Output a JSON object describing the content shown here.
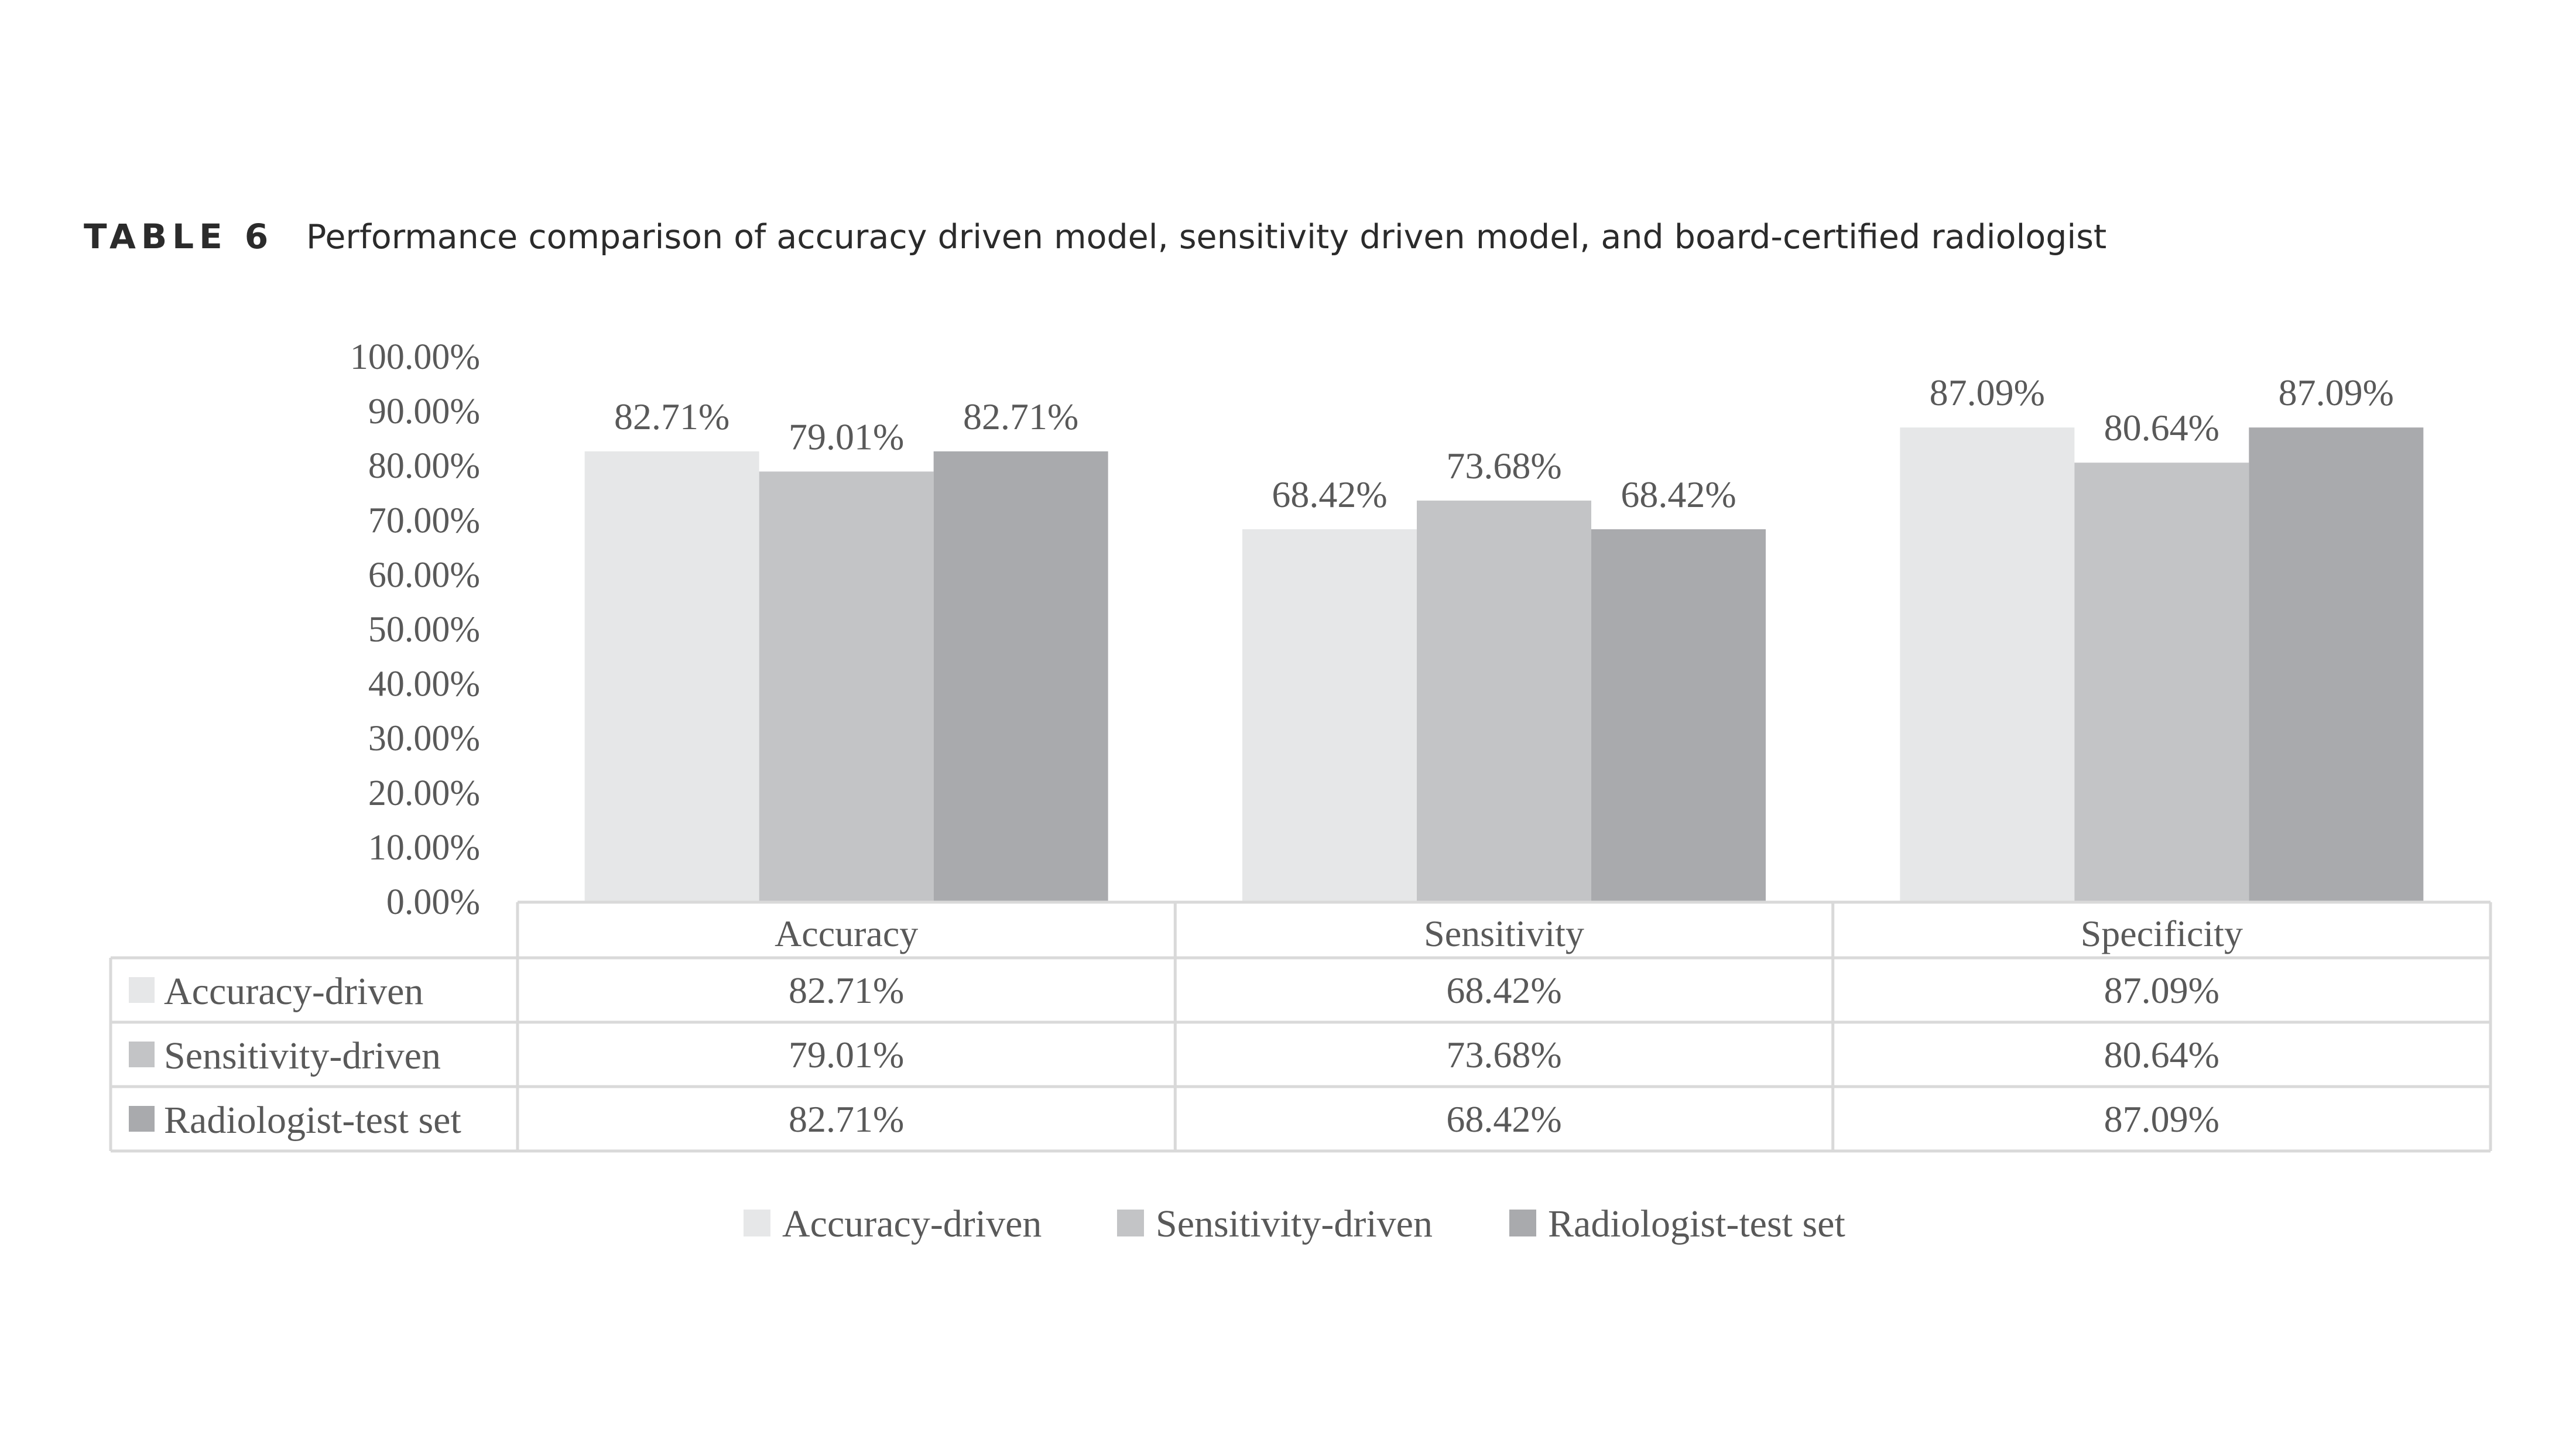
{
  "header": {
    "label": "TABLE 6",
    "caption": "Performance comparison of accuracy driven model, sensitivity driven model, and board-certified radiologist"
  },
  "chart_data": {
    "type": "bar",
    "categories": [
      "Accuracy",
      "Sensitivity",
      "Specificity"
    ],
    "series": [
      {
        "name": "Accuracy-driven",
        "values": [
          82.71,
          68.42,
          87.09
        ],
        "labels": [
          "82.71%",
          "68.42%",
          "87.09%"
        ],
        "color": "#e6e7e8"
      },
      {
        "name": "Sensitivity-driven",
        "values": [
          79.01,
          73.68,
          80.64
        ],
        "labels": [
          "79.01%",
          "73.68%",
          "80.64%"
        ],
        "color": "#c3c4c6"
      },
      {
        "name": "Radiologist-test set",
        "values": [
          82.71,
          68.42,
          87.09
        ],
        "labels": [
          "82.71%",
          "68.42%",
          "87.09%"
        ],
        "color": "#a9aaad"
      }
    ],
    "ylim": [
      0,
      100
    ],
    "yticks": [
      "0.00%",
      "10.00%",
      "20.00%",
      "30.00%",
      "40.00%",
      "50.00%",
      "60.00%",
      "70.00%",
      "80.00%",
      "90.00%",
      "100.00%"
    ],
    "grid": false,
    "data_table": true,
    "legend_position": "bottom"
  }
}
